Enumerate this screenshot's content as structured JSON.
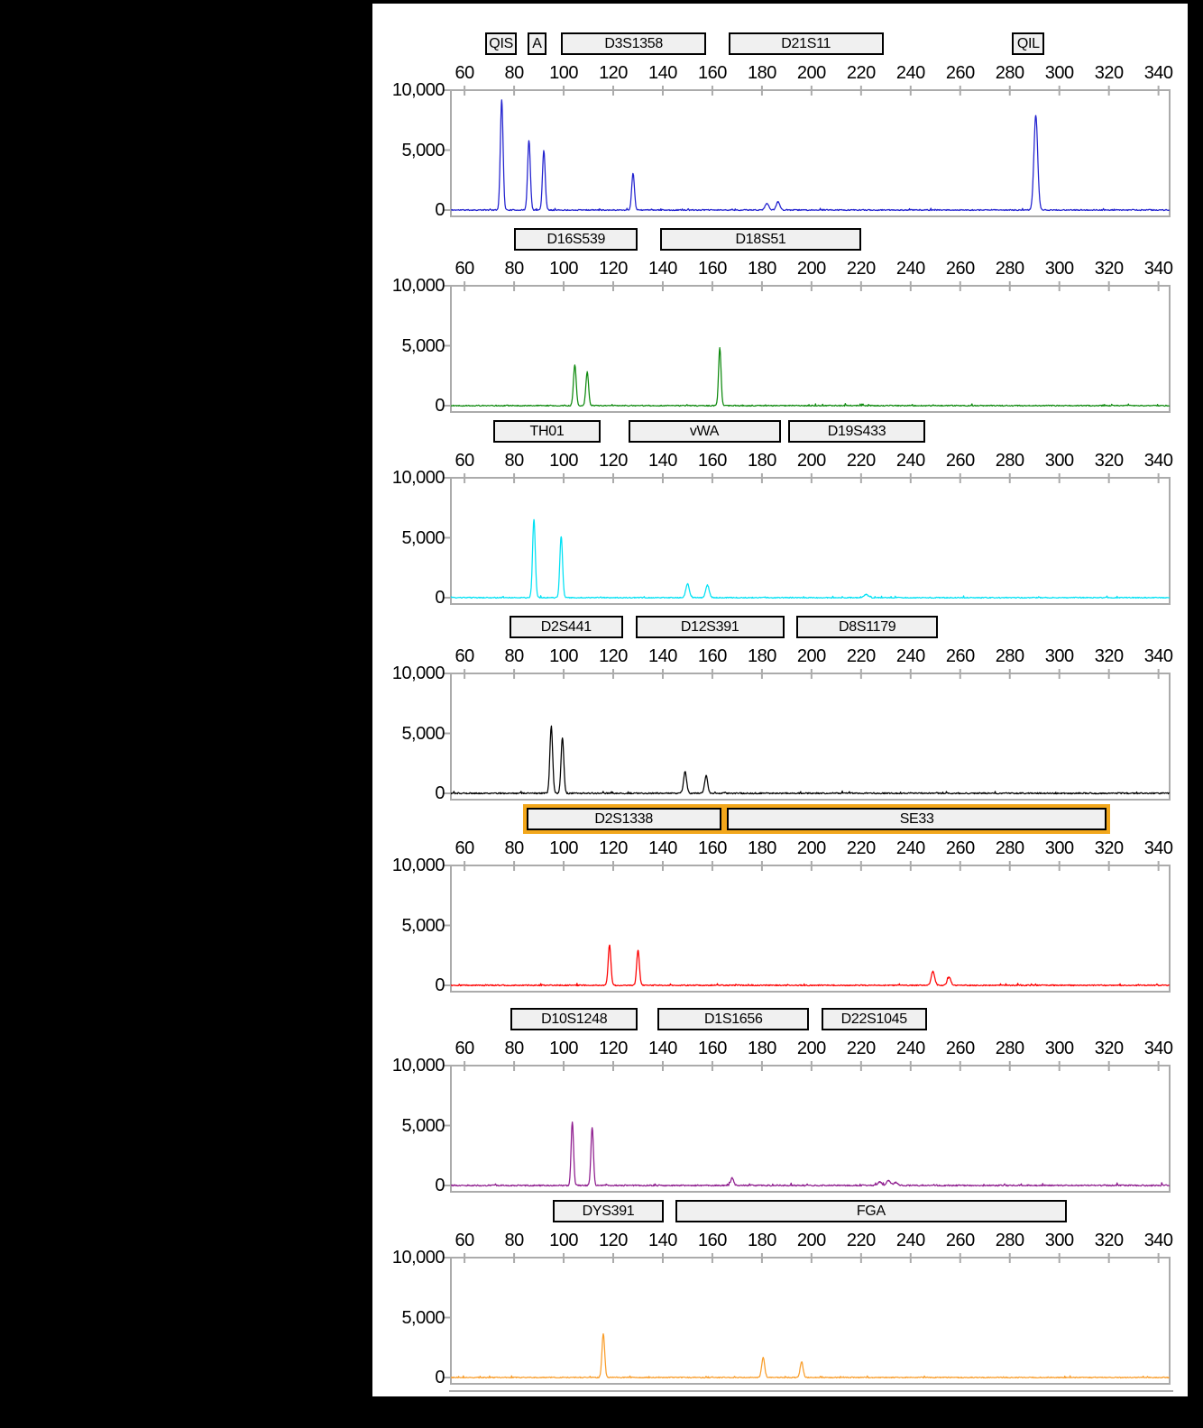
{
  "colors": {
    "page_background": "#000000",
    "panel_background": "#ffffff",
    "plot_border": "#ababab",
    "marker_fill": "#f0f0f0",
    "marker_border": "#000000",
    "marker_highlight": "#f2a71c",
    "axis_text": "#000000"
  },
  "chart_data": {
    "type": "line",
    "title": "",
    "xlabel": "",
    "ylabel": "",
    "x_axis": {
      "bp_min": 54.5,
      "bp_max": 344.5,
      "tick_values": [
        60,
        80,
        100,
        120,
        140,
        160,
        180,
        200,
        220,
        240,
        260,
        280,
        300,
        320,
        340
      ],
      "tick_labels": [
        "60",
        "80",
        "100",
        "120",
        "140",
        "160",
        "180",
        "200",
        "220",
        "240",
        "260",
        "280",
        "300",
        "320",
        "340"
      ]
    },
    "y_axis": {
      "max": 10000,
      "labels": [
        {
          "value": 10000,
          "text": "10,000"
        },
        {
          "value": 5000,
          "text": "5,000"
        },
        {
          "value": 0,
          "text": "0"
        }
      ]
    },
    "grid": false,
    "legend": "none",
    "panels": [
      {
        "dye": "blue",
        "color": "#2121cf",
        "noise_amp": 90,
        "seed": 11,
        "markers": [
          {
            "label": "QIS",
            "start": 68.5,
            "end": 81,
            "highlight": false
          },
          {
            "label": "A",
            "start": 85.5,
            "end": 93,
            "highlight": false
          },
          {
            "label": "D3S1358",
            "start": 99,
            "end": 157.5,
            "highlight": false
          },
          {
            "label": "D21S11",
            "start": 166.5,
            "end": 229,
            "highlight": false
          },
          {
            "label": "QIL",
            "start": 281,
            "end": 294,
            "highlight": false
          }
        ],
        "peaks": [
          {
            "bp": 75,
            "rfu": 9150,
            "sigma": 0.55
          },
          {
            "bp": 86,
            "rfu": 5800,
            "sigma": 0.55
          },
          {
            "bp": 92,
            "rfu": 4950,
            "sigma": 0.55
          },
          {
            "bp": 128,
            "rfu": 3050,
            "sigma": 0.55
          },
          {
            "bp": 182,
            "rfu": 560,
            "sigma": 0.7
          },
          {
            "bp": 186.5,
            "rfu": 680,
            "sigma": 0.7
          },
          {
            "bp": 290.5,
            "rfu": 7900,
            "sigma": 0.75
          }
        ]
      },
      {
        "dye": "green",
        "color": "#0e8a0e",
        "noise_amp": 85,
        "seed": 22,
        "markers": [
          {
            "label": "D16S539",
            "start": 80,
            "end": 130,
            "highlight": false
          },
          {
            "label": "D18S51",
            "start": 139,
            "end": 220,
            "highlight": false
          }
        ],
        "peaks": [
          {
            "bp": 104.5,
            "rfu": 3400,
            "sigma": 0.55
          },
          {
            "bp": 109.5,
            "rfu": 2800,
            "sigma": 0.55
          },
          {
            "bp": 163,
            "rfu": 4800,
            "sigma": 0.5
          }
        ]
      },
      {
        "dye": "cyan",
        "color": "#00e1f4",
        "noise_amp": 80,
        "seed": 33,
        "markers": [
          {
            "label": "TH01",
            "start": 71.5,
            "end": 115,
            "highlight": false
          },
          {
            "label": "vWA",
            "start": 126,
            "end": 187.5,
            "highlight": false
          },
          {
            "label": "D19S433",
            "start": 190.5,
            "end": 246,
            "highlight": false
          }
        ],
        "peaks": [
          {
            "bp": 88,
            "rfu": 6500,
            "sigma": 0.55
          },
          {
            "bp": 99,
            "rfu": 5100,
            "sigma": 0.55
          },
          {
            "bp": 150,
            "rfu": 1150,
            "sigma": 0.7
          },
          {
            "bp": 158,
            "rfu": 1050,
            "sigma": 0.7
          },
          {
            "bp": 222,
            "rfu": 260,
            "sigma": 0.9
          }
        ]
      },
      {
        "dye": "black",
        "color": "#000000",
        "noise_amp": 110,
        "seed": 44,
        "markers": [
          {
            "label": "D2S441",
            "start": 78,
            "end": 124,
            "highlight": false
          },
          {
            "label": "D12S391",
            "start": 129,
            "end": 189,
            "highlight": false
          },
          {
            "label": "D8S1179",
            "start": 194,
            "end": 251,
            "highlight": false
          }
        ],
        "peaks": [
          {
            "bp": 95,
            "rfu": 5600,
            "sigma": 0.55
          },
          {
            "bp": 99.5,
            "rfu": 4650,
            "sigma": 0.55
          },
          {
            "bp": 149,
            "rfu": 1800,
            "sigma": 0.6
          },
          {
            "bp": 157.5,
            "rfu": 1500,
            "sigma": 0.6
          }
        ]
      },
      {
        "dye": "red",
        "color": "#fe0000",
        "noise_amp": 95,
        "seed": 55,
        "markers": [
          {
            "label": "D2S1338",
            "start": 85,
            "end": 163.5,
            "highlight": true
          },
          {
            "label": "SE33",
            "start": 166,
            "end": 319,
            "highlight": true
          }
        ],
        "peaks": [
          {
            "bp": 118.5,
            "rfu": 3350,
            "sigma": 0.55
          },
          {
            "bp": 130,
            "rfu": 2900,
            "sigma": 0.55
          },
          {
            "bp": 249,
            "rfu": 1150,
            "sigma": 0.7
          },
          {
            "bp": 255.5,
            "rfu": 680,
            "sigma": 0.7
          }
        ]
      },
      {
        "dye": "purple",
        "color": "#8e1c8e",
        "noise_amp": 110,
        "seed": 66,
        "markers": [
          {
            "label": "D10S1248",
            "start": 78.5,
            "end": 130,
            "highlight": false
          },
          {
            "label": "D1S1656",
            "start": 138,
            "end": 199,
            "highlight": false
          },
          {
            "label": "D22S1045",
            "start": 204,
            "end": 246.5,
            "highlight": false
          }
        ],
        "peaks": [
          {
            "bp": 103.5,
            "rfu": 5300,
            "sigma": 0.5
          },
          {
            "bp": 111.5,
            "rfu": 4850,
            "sigma": 0.5
          },
          {
            "bp": 168,
            "rfu": 620,
            "sigma": 0.6
          },
          {
            "bp": 227.5,
            "rfu": 290,
            "sigma": 0.8
          },
          {
            "bp": 231,
            "rfu": 390,
            "sigma": 0.8
          },
          {
            "bp": 234,
            "rfu": 250,
            "sigma": 0.8
          }
        ]
      },
      {
        "dye": "orange",
        "color": "#f99d2a",
        "noise_amp": 80,
        "seed": 77,
        "markers": [
          {
            "label": "DYS391",
            "start": 95.5,
            "end": 140.5,
            "highlight": false
          },
          {
            "label": "FGA",
            "start": 145,
            "end": 303,
            "highlight": false
          }
        ],
        "peaks": [
          {
            "bp": 116,
            "rfu": 3650,
            "sigma": 0.55
          },
          {
            "bp": 180.5,
            "rfu": 1650,
            "sigma": 0.6
          },
          {
            "bp": 196,
            "rfu": 1280,
            "sigma": 0.6
          }
        ]
      }
    ]
  }
}
